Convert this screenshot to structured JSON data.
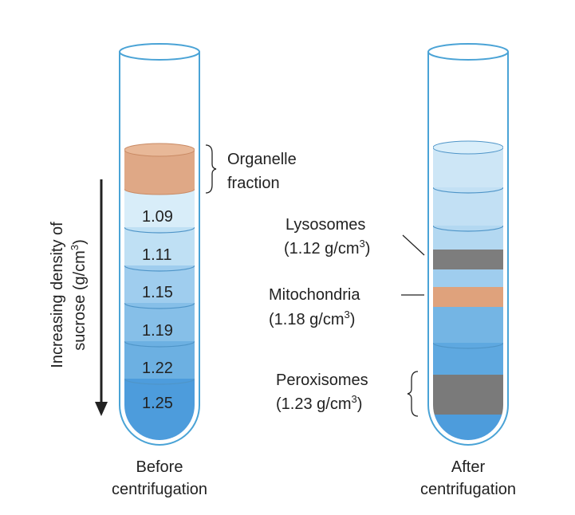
{
  "left_tube": {
    "fraction_label": [
      "Organelle",
      "fraction"
    ],
    "densities": [
      "1.09",
      "1.11",
      "1.15",
      "1.19",
      "1.22",
      "1.25"
    ],
    "axis_label": {
      "line1": "Increasing density of",
      "line2": [
        "sucrose (g/cm",
        "3",
        ")"
      ]
    },
    "caption": [
      "Before",
      "centrifugation"
    ]
  },
  "right_tube": {
    "bands": [
      {
        "name": "Lysosomes",
        "density": [
          "(1.12 g/cm",
          "3",
          ")"
        ]
      },
      {
        "name": "Mitochondria",
        "density": [
          "(1.18 g/cm",
          "3",
          ")"
        ]
      },
      {
        "name": "Peroxisomes",
        "density": [
          "(1.23 g/cm",
          "3",
          ")"
        ]
      }
    ],
    "caption": [
      "After",
      "centrifugation"
    ]
  }
}
